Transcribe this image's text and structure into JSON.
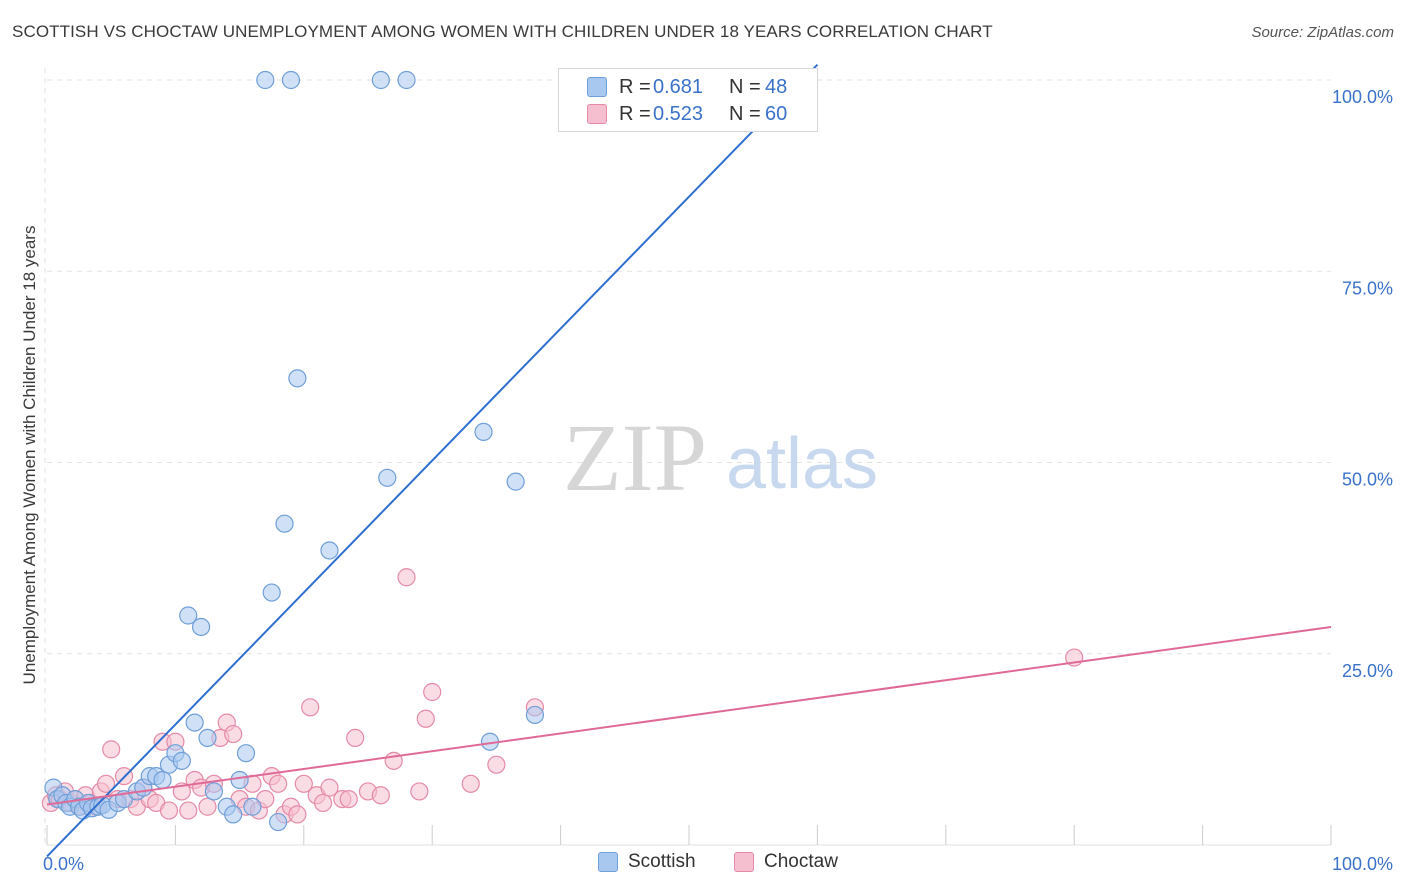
{
  "title": "SCOTTISH VS CHOCTAW UNEMPLOYMENT AMONG WOMEN WITH CHILDREN UNDER 18 YEARS CORRELATION CHART",
  "source": "Source: ZipAtlas.com",
  "watermark": {
    "zip": "ZIP",
    "atlas": "atlas"
  },
  "legend_top": [
    {
      "r_label": "R =",
      "r_value": "0.681",
      "n_label": "N =",
      "n_value": "48"
    },
    {
      "r_label": "R =",
      "r_value": "0.523",
      "n_label": "N =",
      "n_value": "60"
    }
  ],
  "legend_bottom": [
    {
      "label": "Scottish"
    },
    {
      "label": "Choctaw"
    }
  ],
  "colors": {
    "scottish_fill": "#a9c8f0",
    "scottish_stroke": "#6f9fd8",
    "scottish_line": "#2f6fd0",
    "choctaw_fill": "#f6bfd0",
    "choctaw_stroke": "#e58aa8",
    "choctaw_line": "#e06a97",
    "value_text": "#3a72c9",
    "grid": "#e2e2e2"
  },
  "chart_data": {
    "type": "scatter",
    "title": "SCOTTISH VS CHOCTAW UNEMPLOYMENT AMONG WOMEN WITH CHILDREN UNDER 18 YEARS CORRELATION CHART",
    "xlabel": "",
    "ylabel": "Unemployment Among Women with Children Under 18 years",
    "xlim": [
      0,
      100
    ],
    "ylim": [
      0,
      100
    ],
    "x_tick_labels": [
      {
        "value": 0,
        "label": "0.0%"
      },
      {
        "value": 100,
        "label": "100.0%"
      }
    ],
    "y_tick_labels": [
      {
        "value": 25,
        "label": "25.0%"
      },
      {
        "value": 50,
        "label": "50.0%"
      },
      {
        "value": 75,
        "label": "75.0%"
      },
      {
        "value": 100,
        "label": "100.0%"
      }
    ],
    "grid": true,
    "legend_position": "top-center",
    "series": [
      {
        "name": "Scottish",
        "r": 0.681,
        "n": 48,
        "trend": {
          "x": [
            0,
            60
          ],
          "y": [
            -1.5,
            102
          ]
        },
        "points": [
          [
            0.5,
            7.5
          ],
          [
            0.8,
            6
          ],
          [
            1.2,
            6.5
          ],
          [
            1.5,
            5.5
          ],
          [
            1.8,
            5
          ],
          [
            2.2,
            6
          ],
          [
            2.5,
            5
          ],
          [
            2.8,
            4.5
          ],
          [
            3.2,
            5.5
          ],
          [
            3.5,
            4.8
          ],
          [
            4,
            5
          ],
          [
            4.3,
            5.2
          ],
          [
            4.8,
            4.6
          ],
          [
            5.5,
            5.5
          ],
          [
            6,
            6
          ],
          [
            7,
            7
          ],
          [
            7.5,
            7.5
          ],
          [
            8,
            9
          ],
          [
            8.5,
            9
          ],
          [
            9,
            8.5
          ],
          [
            9.5,
            10.5
          ],
          [
            10,
            12
          ],
          [
            10.5,
            11
          ],
          [
            11,
            30
          ],
          [
            11.5,
            16
          ],
          [
            12,
            28.5
          ],
          [
            12.5,
            14
          ],
          [
            13,
            7
          ],
          [
            14,
            5
          ],
          [
            14.5,
            4
          ],
          [
            15,
            8.5
          ],
          [
            15.5,
            12
          ],
          [
            16,
            5
          ],
          [
            17,
            100
          ],
          [
            17.5,
            33
          ],
          [
            18,
            3
          ],
          [
            18.5,
            42
          ],
          [
            19,
            100
          ],
          [
            19.5,
            61
          ],
          [
            22,
            38.5
          ],
          [
            26,
            100
          ],
          [
            26.5,
            48
          ],
          [
            28,
            100
          ],
          [
            34,
            54
          ],
          [
            34.5,
            13.5
          ],
          [
            36.5,
            47.5
          ],
          [
            38,
            17
          ],
          [
            41,
            100
          ]
        ]
      },
      {
        "name": "Choctaw",
        "r": 0.523,
        "n": 60,
        "trend": {
          "x": [
            0,
            100
          ],
          "y": [
            5.3,
            28.5
          ]
        },
        "points": [
          [
            0.3,
            5.5
          ],
          [
            0.7,
            6.5
          ],
          [
            1,
            6
          ],
          [
            1.4,
            7
          ],
          [
            1.8,
            5.5
          ],
          [
            2.2,
            6
          ],
          [
            2.6,
            5
          ],
          [
            3,
            6.5
          ],
          [
            3.4,
            5.5
          ],
          [
            3.8,
            5
          ],
          [
            4.2,
            7
          ],
          [
            4.6,
            8
          ],
          [
            5,
            12.5
          ],
          [
            5.5,
            6
          ],
          [
            6,
            9
          ],
          [
            6.5,
            6
          ],
          [
            7,
            5
          ],
          [
            7.5,
            7.5
          ],
          [
            8,
            6
          ],
          [
            8.5,
            5.5
          ],
          [
            9,
            13.5
          ],
          [
            9.5,
            4.5
          ],
          [
            10,
            13.5
          ],
          [
            10.5,
            7
          ],
          [
            11,
            4.5
          ],
          [
            11.5,
            8.5
          ],
          [
            12,
            7.5
          ],
          [
            12.5,
            5
          ],
          [
            13,
            8
          ],
          [
            13.5,
            14
          ],
          [
            14,
            16
          ],
          [
            14.5,
            14.5
          ],
          [
            15,
            6
          ],
          [
            15.5,
            5
          ],
          [
            16,
            8
          ],
          [
            16.5,
            4.5
          ],
          [
            17,
            6
          ],
          [
            17.5,
            9
          ],
          [
            18,
            8
          ],
          [
            18.5,
            4
          ],
          [
            19,
            5
          ],
          [
            19.5,
            4
          ],
          [
            20,
            8
          ],
          [
            20.5,
            18
          ],
          [
            21,
            6.5
          ],
          [
            21.5,
            5.5
          ],
          [
            22,
            7.5
          ],
          [
            23,
            6
          ],
          [
            23.5,
            6
          ],
          [
            24,
            14
          ],
          [
            25,
            7
          ],
          [
            26,
            6.5
          ],
          [
            27,
            11
          ],
          [
            28,
            35
          ],
          [
            29,
            7
          ],
          [
            29.5,
            16.5
          ],
          [
            30,
            20
          ],
          [
            33,
            8
          ],
          [
            35,
            10.5
          ],
          [
            38,
            18
          ]
        ]
      },
      {
        "name": "Choctaw (outlier)",
        "points": [
          [
            80,
            24.5
          ]
        ]
      }
    ]
  }
}
